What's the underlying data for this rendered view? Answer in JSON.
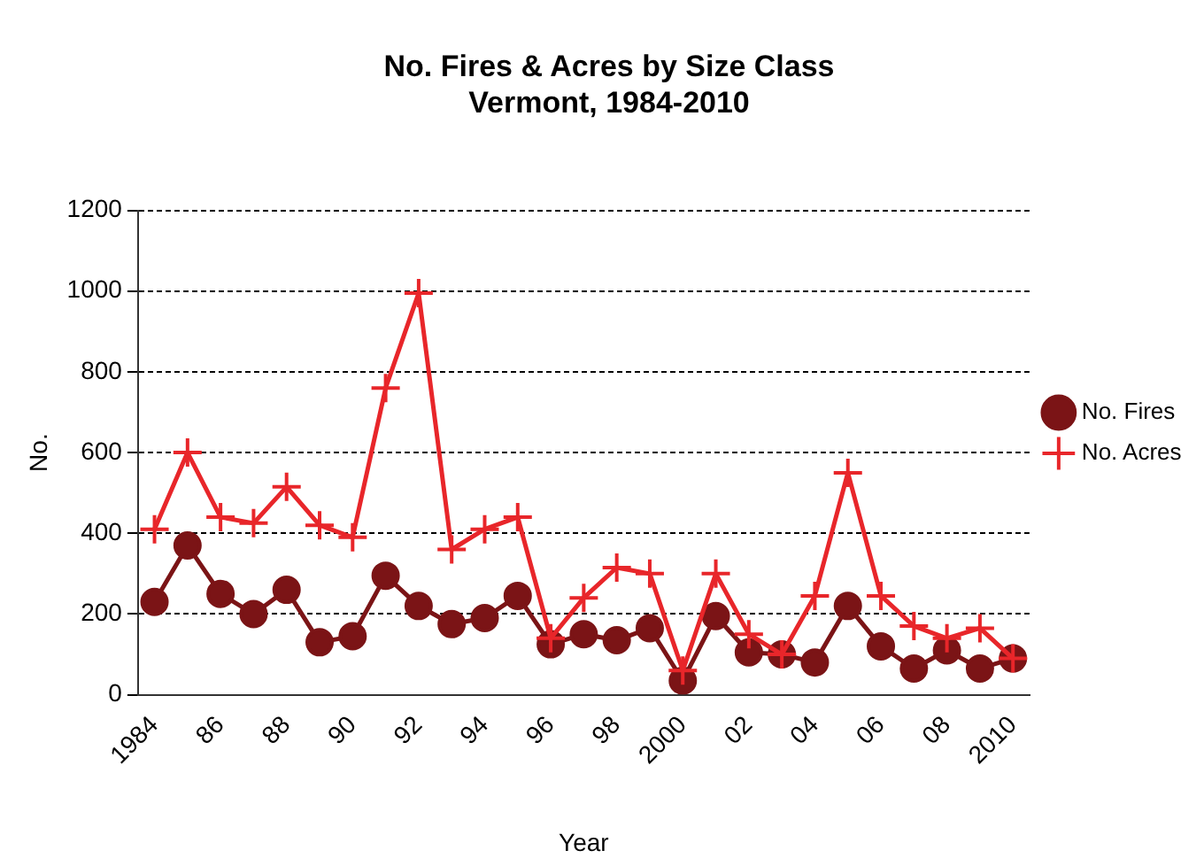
{
  "chart_data": {
    "type": "line",
    "title": "No. Fires & Acres by Size Class\nVermont, 1984-2010",
    "xlabel": "Year",
    "ylabel": "No.",
    "categories": [
      "1984",
      null,
      "86",
      null,
      "88",
      null,
      "90",
      null,
      "92",
      null,
      "94",
      null,
      "96",
      null,
      "98",
      null,
      "2000",
      null,
      "02",
      null,
      "04",
      null,
      "06",
      null,
      "08",
      null,
      "2010"
    ],
    "series": [
      {
        "name": "No. Fires",
        "color": "#7b1416",
        "marker": "circle",
        "values": [
          230,
          370,
          250,
          200,
          260,
          130,
          145,
          295,
          220,
          175,
          190,
          245,
          125,
          150,
          135,
          165,
          35,
          195,
          105,
          100,
          80,
          220,
          120,
          65,
          110,
          65,
          90
        ]
      },
      {
        "name": "No. Acres",
        "color": "#e8262a",
        "marker": "cross",
        "values": [
          410,
          600,
          440,
          425,
          515,
          420,
          390,
          760,
          995,
          360,
          410,
          440,
          140,
          240,
          315,
          300,
          60,
          300,
          150,
          100,
          245,
          550,
          245,
          170,
          140,
          165,
          90
        ]
      }
    ],
    "ylim": [
      0,
      1200
    ],
    "yticks": [
      0,
      200,
      400,
      600,
      800,
      1000,
      1200
    ],
    "grid": "y",
    "legend": "right"
  }
}
